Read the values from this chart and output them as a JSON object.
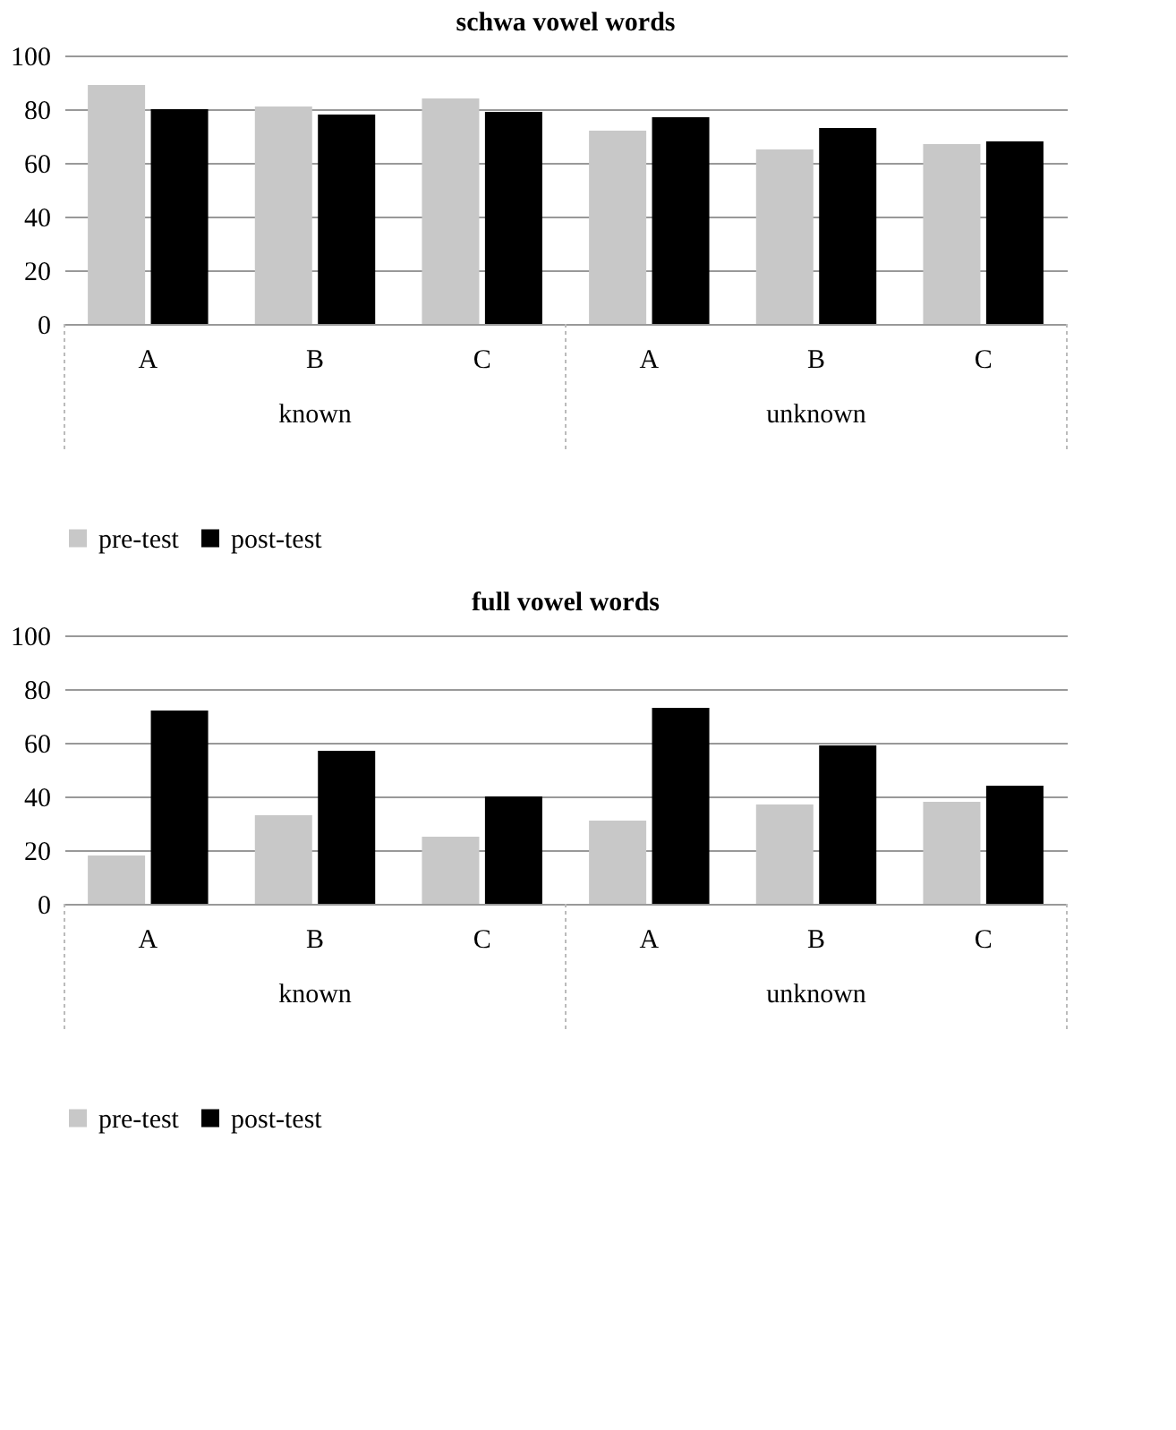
{
  "chart_data": [
    {
      "type": "bar",
      "title": "schwa vowel words",
      "categories": [
        "A",
        "B",
        "C",
        "A",
        "B",
        "C"
      ],
      "annotations": [
        "known",
        "unknown"
      ],
      "series": [
        {
          "name": "pre-test",
          "color": "#c8c8c8",
          "values": [
            89,
            81,
            84,
            72,
            65,
            67
          ]
        },
        {
          "name": "post-test",
          "color": "#000000",
          "values": [
            80,
            78,
            79,
            77,
            73,
            68
          ]
        }
      ],
      "ylim": [
        0,
        100
      ],
      "yticks": [
        0,
        20,
        40,
        60,
        80,
        100
      ],
      "grid": "y",
      "legend": "bottom"
    },
    {
      "type": "bar",
      "title": "full vowel words",
      "categories": [
        "A",
        "B",
        "C",
        "A",
        "B",
        "C"
      ],
      "annotations": [
        "known",
        "unknown"
      ],
      "series": [
        {
          "name": "pre-test",
          "color": "#c8c8c8",
          "values": [
            18,
            33,
            25,
            31,
            37,
            38
          ]
        },
        {
          "name": "post-test",
          "color": "#000000",
          "values": [
            72,
            57,
            40,
            73,
            59,
            44
          ]
        }
      ],
      "ylim": [
        0,
        100
      ],
      "yticks": [
        0,
        20,
        40,
        60,
        80,
        100
      ],
      "grid": "y",
      "legend": "bottom"
    }
  ]
}
